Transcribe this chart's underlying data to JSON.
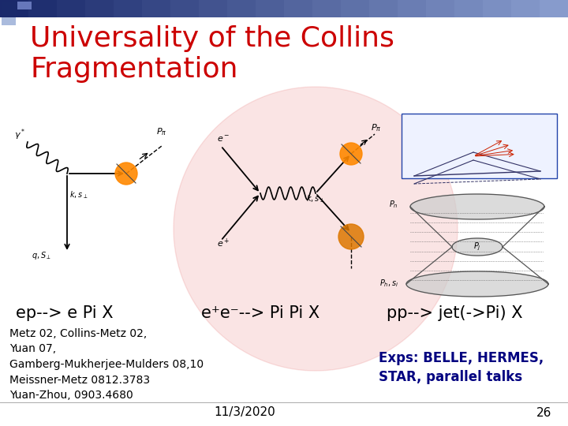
{
  "title_line1": "Universality of the Collins",
  "title_line2": "Fragmentation",
  "title_color": "#cc0000",
  "title_fontsize": 26,
  "bg_color": "#ffffff",
  "label1": "ep--> e Pi X",
  "label2": "e⁺e⁻--> Pi Pi X",
  "label3": "pp--> jet(->Pi) X",
  "label_fontsize": 15,
  "refs_line1": "Metz 02, Collins-Metz 02,",
  "refs_line2": "Yuan 07,",
  "refs_line3": "Gamberg-Mukherjee-Mulders 08,10",
  "refs_line4": "Meissner-Metz 0812.3783",
  "refs_line5": "Yuan-Zhou, 0903.4680",
  "refs_fontsize": 10,
  "exps_line1": "Exps: BELLE, HERMES,",
  "exps_line2": "STAR, parallel talks",
  "exps_color": "#000080",
  "exps_fontsize": 12,
  "date_text": "11/3/2020",
  "page_num": "26",
  "footer_fontsize": 11
}
